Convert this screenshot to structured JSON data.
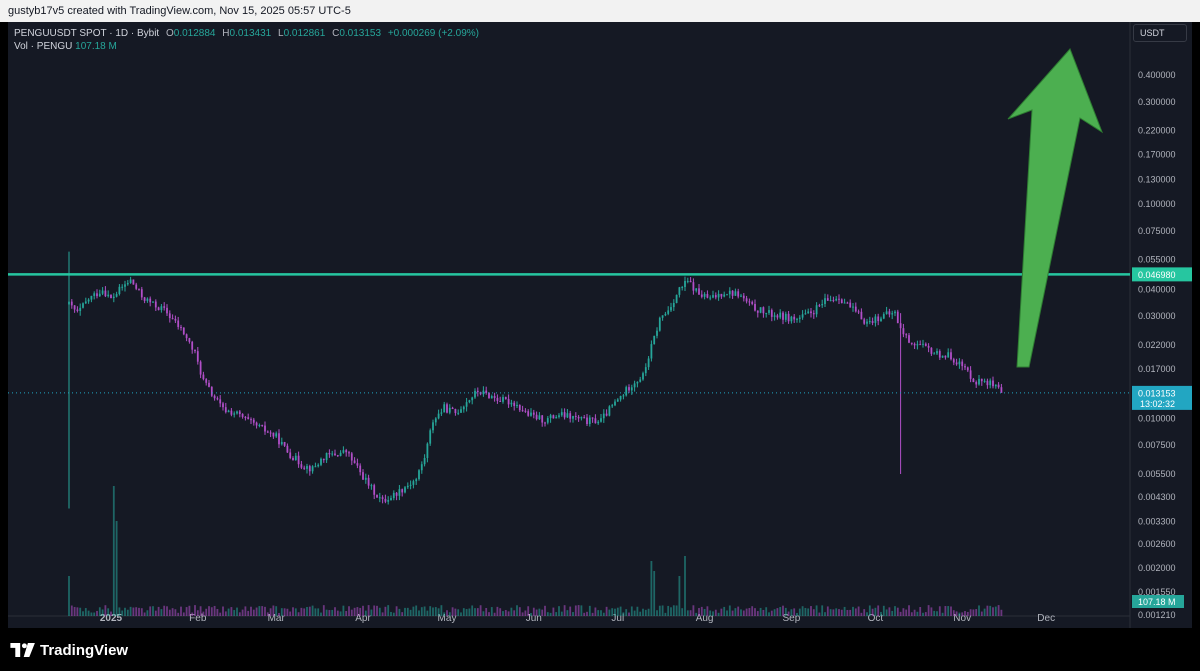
{
  "header": {
    "creator_line": "gustyb17v5 created with TradingView.com, Nov 15, 2025 05:57 UTC-5"
  },
  "legend": {
    "symbol": "PENGUUSDT SPOT · 1D · Bybit",
    "o_label": "O",
    "o_value": "0.012884",
    "h_label": "H",
    "h_value": "0.013431",
    "l_label": "L",
    "l_value": "0.012861",
    "c_label": "C",
    "c_value": "0.013153",
    "change": "+0.000269 (+2.09%)",
    "vol_label": "Vol · PENGU",
    "vol_value": "107.18 M"
  },
  "price_scale": {
    "currency": "USDT",
    "current_price": "0.013153",
    "countdown": "13:02:32",
    "horizontal_level": "0.046980",
    "volume_badge": "107.18 M"
  },
  "colors": {
    "up": "#26a69a",
    "down": "#b14fc8",
    "horizontal_line": "#26c6a0",
    "arrow": "#4caf50",
    "background": "#151924",
    "current_badge": "#22a6c2"
  },
  "chart_data": {
    "type": "candlestick",
    "y_scale": "log",
    "y_ticks": [
      "0.400000",
      "0.300000",
      "0.220000",
      "0.170000",
      "0.130000",
      "0.100000",
      "0.075000",
      "0.055000",
      "0.040000",
      "0.030000",
      "0.022000",
      "0.017000",
      "0.010000",
      "0.007500",
      "0.005500",
      "0.004300",
      "0.003300",
      "0.002600",
      "0.002000",
      "0.001550",
      "0.001210"
    ],
    "x_ticks": [
      "2025",
      "Feb",
      "Mar",
      "Apr",
      "May",
      "Jun",
      "Jul",
      "Aug",
      "Sep",
      "Oct",
      "Nov",
      "Dec"
    ],
    "horizontal_line": 0.04698,
    "current_close": 0.013153,
    "price_path": [
      [
        "2024-12-17",
        0.034
      ],
      [
        "2024-12-20",
        0.031
      ],
      [
        "2024-12-24",
        0.036
      ],
      [
        "2024-12-29",
        0.04
      ],
      [
        "2025-01-01",
        0.036
      ],
      [
        "2025-01-05",
        0.041
      ],
      [
        "2025-01-08",
        0.044
      ],
      [
        "2025-01-12",
        0.037
      ],
      [
        "2025-01-16",
        0.034
      ],
      [
        "2025-01-20",
        0.032
      ],
      [
        "2025-01-23",
        0.029
      ],
      [
        "2025-01-27",
        0.025
      ],
      [
        "2025-01-31",
        0.02
      ],
      [
        "2025-02-03",
        0.015
      ],
      [
        "2025-02-06",
        0.013
      ],
      [
        "2025-02-10",
        0.011
      ],
      [
        "2025-02-15",
        0.0105
      ],
      [
        "2025-02-20",
        0.0095
      ],
      [
        "2025-02-25",
        0.0088
      ],
      [
        "2025-03-01",
        0.0082
      ],
      [
        "2025-03-05",
        0.007
      ],
      [
        "2025-03-10",
        0.0061
      ],
      [
        "2025-03-14",
        0.0058
      ],
      [
        "2025-03-18",
        0.0066
      ],
      [
        "2025-03-22",
        0.0068
      ],
      [
        "2025-03-26",
        0.007
      ],
      [
        "2025-03-31",
        0.0056
      ],
      [
        "2025-04-04",
        0.0047
      ],
      [
        "2025-04-08",
        0.0041
      ],
      [
        "2025-04-12",
        0.0044
      ],
      [
        "2025-04-16",
        0.0048
      ],
      [
        "2025-04-20",
        0.0052
      ],
      [
        "2025-04-23",
        0.0066
      ],
      [
        "2025-04-26",
        0.0098
      ],
      [
        "2025-04-30",
        0.0112
      ],
      [
        "2025-05-04",
        0.0106
      ],
      [
        "2025-05-08",
        0.012
      ],
      [
        "2025-05-12",
        0.0134
      ],
      [
        "2025-05-16",
        0.0128
      ],
      [
        "2025-05-20",
        0.0122
      ],
      [
        "2025-05-25",
        0.0118
      ],
      [
        "2025-05-30",
        0.0104
      ],
      [
        "2025-06-05",
        0.0098
      ],
      [
        "2025-06-10",
        0.0104
      ],
      [
        "2025-06-15",
        0.0101
      ],
      [
        "2025-06-20",
        0.0097
      ],
      [
        "2025-06-25",
        0.0098
      ],
      [
        "2025-06-28",
        0.011
      ],
      [
        "2025-07-02",
        0.0126
      ],
      [
        "2025-07-06",
        0.0145
      ],
      [
        "2025-07-10",
        0.0158
      ],
      [
        "2025-07-13",
        0.0215
      ],
      [
        "2025-07-16",
        0.029
      ],
      [
        "2025-07-19",
        0.032
      ],
      [
        "2025-07-23",
        0.04
      ],
      [
        "2025-07-26",
        0.0435
      ],
      [
        "2025-07-30",
        0.038
      ],
      [
        "2025-08-03",
        0.036
      ],
      [
        "2025-08-08",
        0.039
      ],
      [
        "2025-08-13",
        0.038
      ],
      [
        "2025-08-18",
        0.033
      ],
      [
        "2025-08-23",
        0.031
      ],
      [
        "2025-08-28",
        0.03
      ],
      [
        "2025-09-03",
        0.029
      ],
      [
        "2025-09-08",
        0.031
      ],
      [
        "2025-09-13",
        0.035
      ],
      [
        "2025-09-18",
        0.037
      ],
      [
        "2025-09-23",
        0.032
      ],
      [
        "2025-09-28",
        0.028
      ],
      [
        "2025-10-03",
        0.03
      ],
      [
        "2025-10-08",
        0.031
      ],
      [
        "2025-10-10",
        0.026
      ],
      [
        "2025-10-13",
        0.023
      ],
      [
        "2025-10-18",
        0.0215
      ],
      [
        "2025-10-23",
        0.02
      ],
      [
        "2025-10-28",
        0.0195
      ],
      [
        "2025-11-02",
        0.017
      ],
      [
        "2025-11-06",
        0.0148
      ],
      [
        "2025-11-09",
        0.0152
      ],
      [
        "2025-11-12",
        0.0142
      ],
      [
        "2025-11-15",
        0.013153
      ]
    ],
    "wicks": [
      {
        "date": "2024-12-17",
        "low": 0.0038,
        "high": 0.06
      },
      {
        "date": "2025-10-10",
        "low": 0.0055,
        "high": 0.031
      }
    ],
    "annotation": "green upward arrow (projection)"
  }
}
